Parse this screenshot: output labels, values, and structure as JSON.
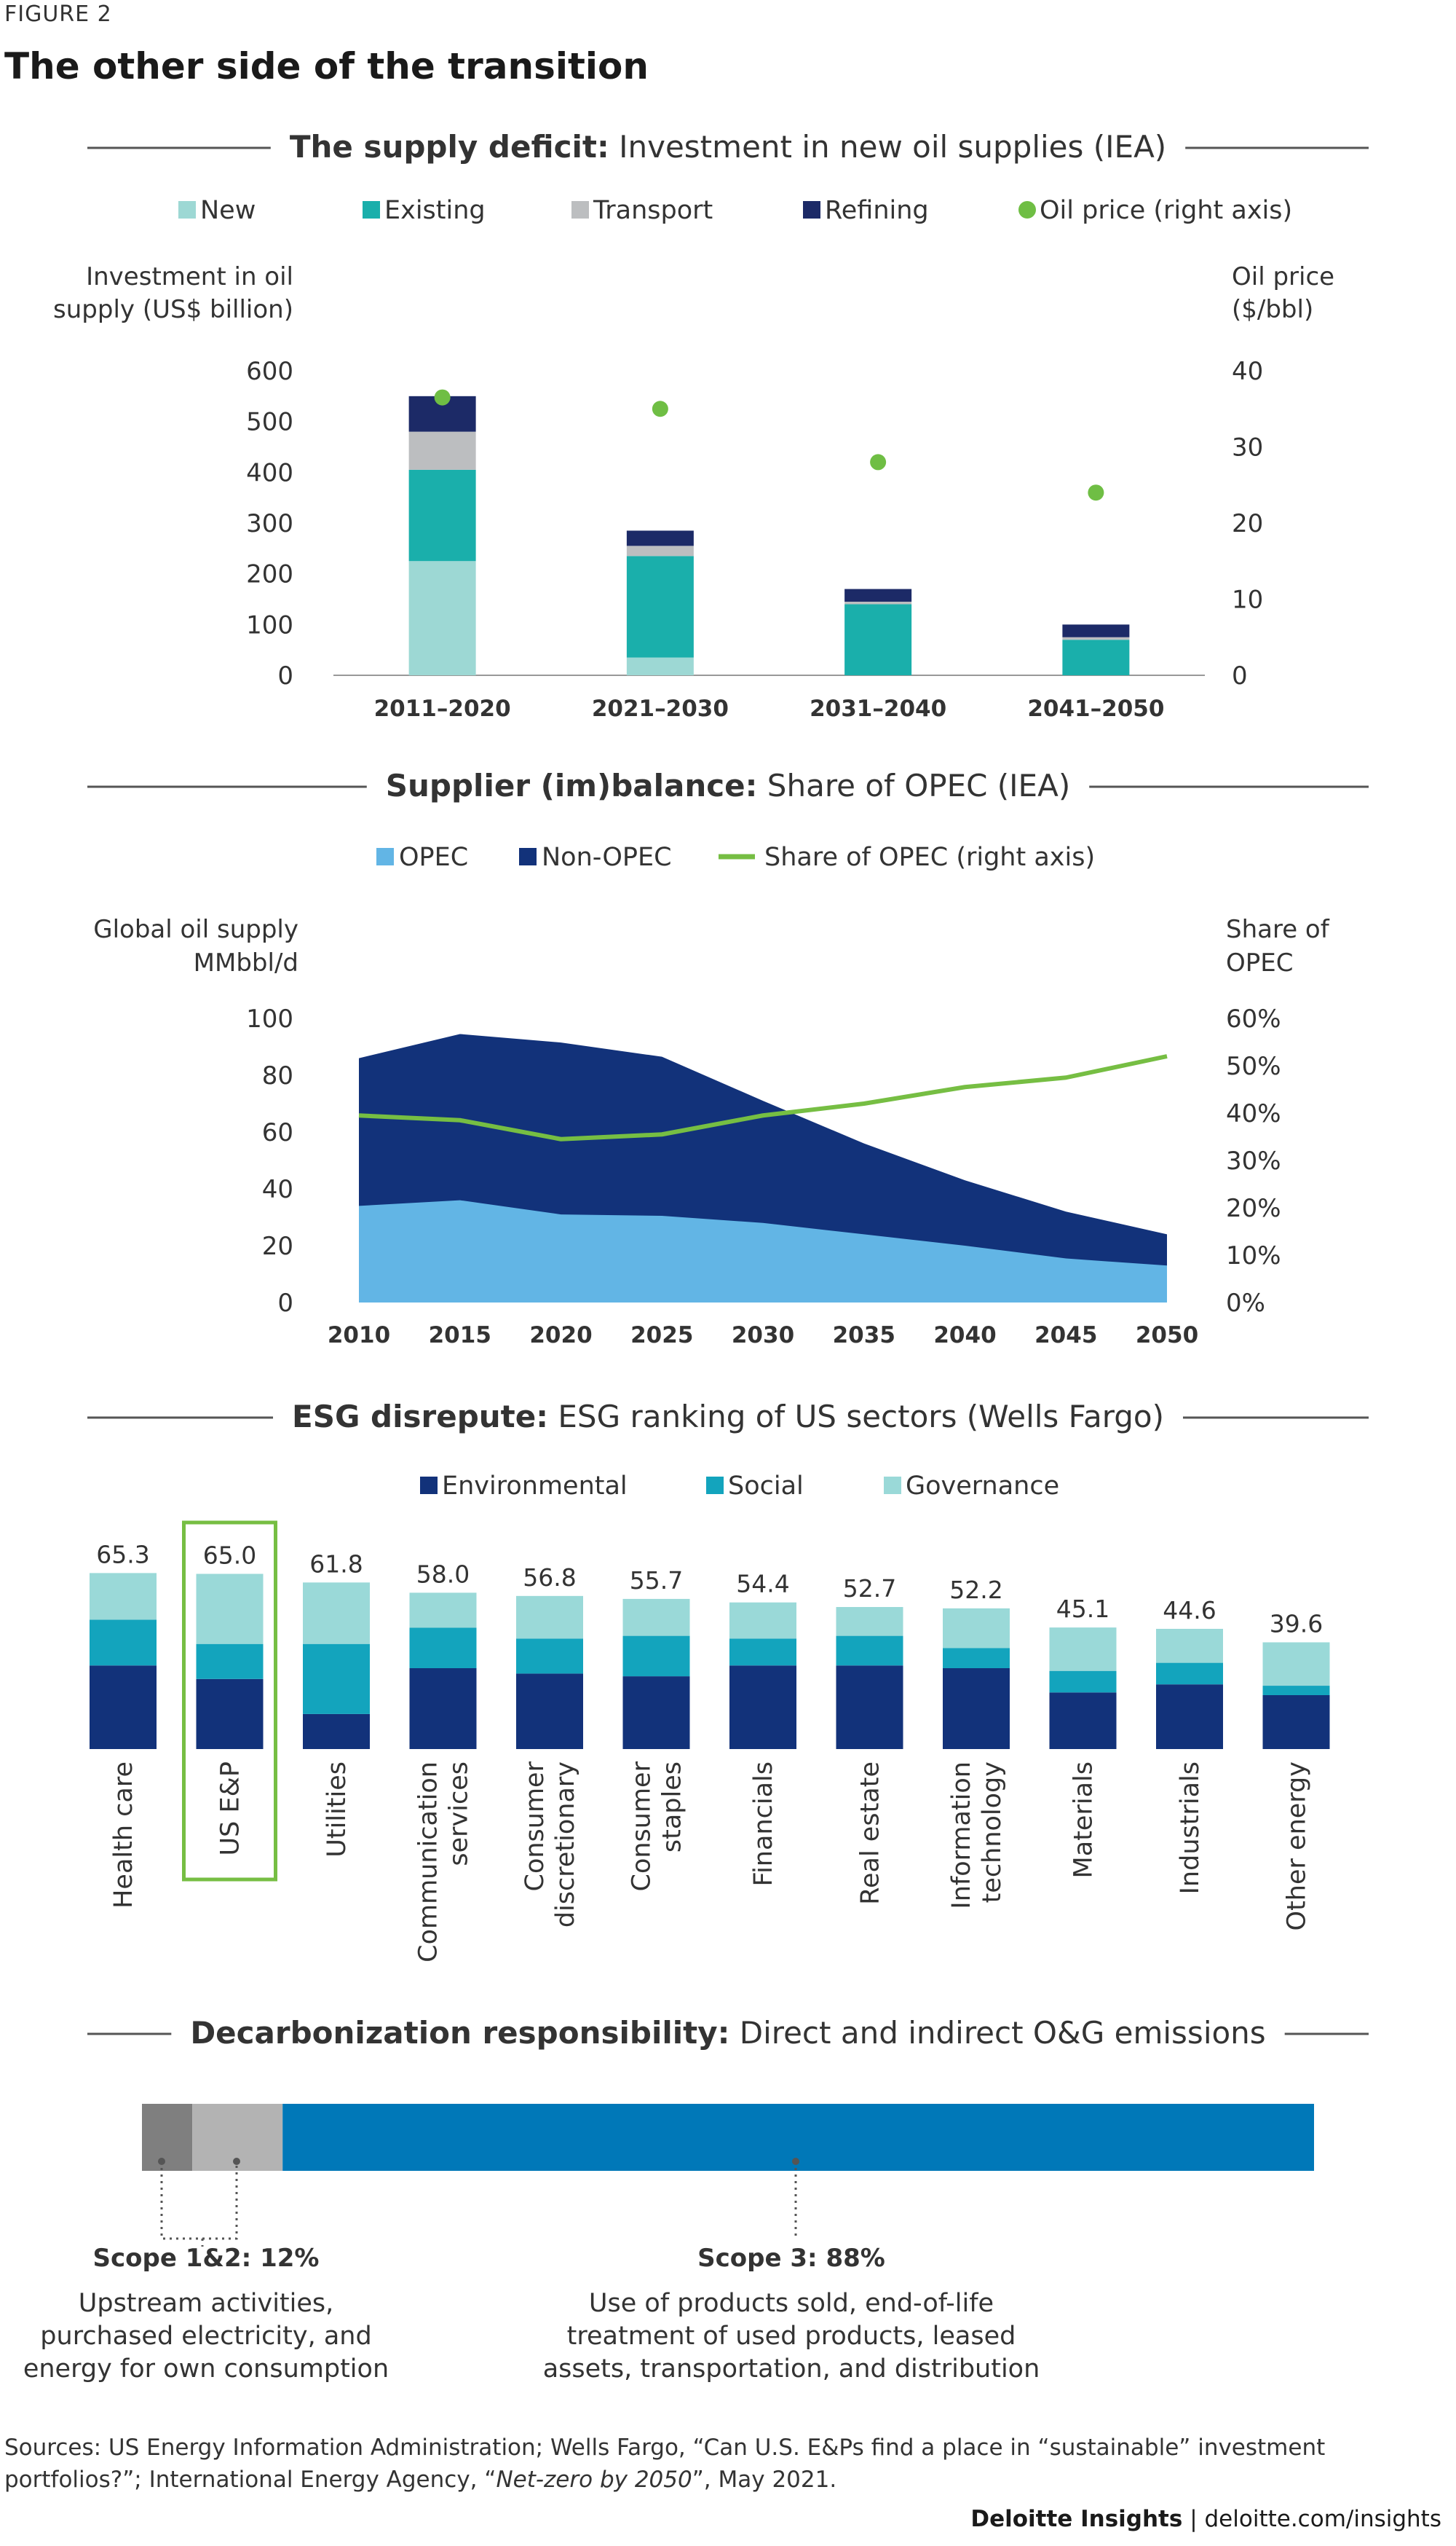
{
  "figure_label": "FIGURE 2",
  "title": "The other side of the transition",
  "colors": {
    "new": "#9dd8d4",
    "existing": "#1aafab",
    "transport": "#bcbec0",
    "refining": "#1c2a67",
    "oil_price": "#6fbe44",
    "opec": "#62b5e5",
    "non_opec": "#12327a",
    "share_line": "#76be43",
    "environmental": "#12327a",
    "social": "#13a4bd",
    "governance": "#9ad9d8",
    "highlight": "#76be43",
    "scope12_dark": "#7f7f7f",
    "scope12_light": "#b3b3b3",
    "scope3": "#0078b8"
  },
  "chart_data": [
    {
      "type": "bar",
      "stacked": true,
      "title_bold": "The supply deficit:",
      "title_rest": " Investment in new oil supplies (IEA)",
      "legend": [
        "New",
        "Existing",
        "Transport",
        "Refining",
        "Oil price (right axis)"
      ],
      "ylabel": [
        "Investment in oil",
        "supply (US$ billion)"
      ],
      "y2label": [
        "Oil price",
        "($/bbl)"
      ],
      "ylim": [
        0,
        600
      ],
      "yticks": [
        "600",
        "500",
        "400",
        "300",
        "200",
        "100",
        "0"
      ],
      "y2lim": [
        0,
        40
      ],
      "y2ticks": [
        "40",
        "30",
        "20",
        "10",
        "0"
      ],
      "categories": [
        "2011–2020",
        "2021–2030",
        "2031–2040",
        "2041–2050"
      ],
      "series": [
        {
          "name": "New",
          "values": [
            225,
            35,
            0,
            0
          ]
        },
        {
          "name": "Existing",
          "values": [
            180,
            200,
            140,
            70
          ]
        },
        {
          "name": "Transport",
          "values": [
            75,
            20,
            5,
            5
          ]
        },
        {
          "name": "Refining",
          "values": [
            70,
            30,
            25,
            25
          ]
        }
      ],
      "oil_price": [
        36.5,
        35,
        28,
        24
      ]
    },
    {
      "type": "area",
      "stacked": true,
      "title_bold": "Supplier (im)balance:",
      "title_rest": " Share of OPEC (IEA)",
      "legend": [
        "OPEC",
        "Non-OPEC",
        "Share of OPEC (right axis)"
      ],
      "ylabel": [
        "Global oil supply",
        "MMbbl/d"
      ],
      "y2label": [
        "Share of",
        "OPEC"
      ],
      "ylim": [
        0,
        100
      ],
      "yticks": [
        "100",
        "80",
        "60",
        "40",
        "20",
        "0"
      ],
      "y2lim": [
        0,
        60
      ],
      "y2ticks": [
        "60%",
        "50%",
        "40%",
        "30%",
        "20%",
        "10%",
        "0%"
      ],
      "x": [
        "2010",
        "2015",
        "2020",
        "2025",
        "2030",
        "2035",
        "2040",
        "2045",
        "2050"
      ],
      "opec": [
        34,
        36,
        31,
        30.5,
        28,
        24,
        20,
        15.5,
        13
      ],
      "total": [
        86,
        94.5,
        91.5,
        86.5,
        71,
        56,
        43,
        32,
        24
      ],
      "share_pct": [
        39.5,
        38.5,
        34.5,
        35.5,
        39.5,
        42,
        45.5,
        47.5,
        52
      ]
    },
    {
      "type": "bar",
      "stacked": true,
      "title_bold": "ESG disrepute:",
      "title_rest": " ESG ranking of US sectors (Wells Fargo)",
      "legend": [
        "Environmental",
        "Social",
        "Governance"
      ],
      "ylim": [
        0,
        70
      ],
      "categories": [
        [
          "Health care"
        ],
        [
          "US E&P"
        ],
        [
          "Utilities"
        ],
        [
          "Communication",
          "services"
        ],
        [
          "Consumer",
          "discretionary"
        ],
        [
          "Consumer",
          "staples"
        ],
        [
          "Financials"
        ],
        [
          "Real estate"
        ],
        [
          "Information",
          "technology"
        ],
        [
          "Materials"
        ],
        [
          "Industrials"
        ],
        [
          "Other energy"
        ]
      ],
      "totals": [
        "65.3",
        "65.0",
        "61.8",
        "58.0",
        "56.8",
        "55.7",
        "54.4",
        "52.7",
        "52.2",
        "45.1",
        "44.6",
        "39.6"
      ],
      "series": [
        {
          "name": "Environmental",
          "values": [
            31,
            26,
            13,
            30,
            28,
            27,
            31,
            31,
            30,
            21,
            24,
            20
          ]
        },
        {
          "name": "Social",
          "values": [
            17,
            13,
            26,
            15,
            13,
            15,
            10,
            11,
            7.5,
            8,
            8,
            3.5
          ]
        },
        {
          "name": "Governance",
          "values": [
            17.3,
            26,
            22.8,
            13,
            15.8,
            13.7,
            13.4,
            10.7,
            14.7,
            16.1,
            12.6,
            16.1
          ]
        }
      ],
      "highlight_index": 1
    },
    {
      "type": "bar",
      "stacked": true,
      "title_bold": "Decarbonization responsibility:",
      "title_rest": " Direct and indirect O&G emissions",
      "segments": [
        {
          "name": "Scope 1",
          "value": 4.3
        },
        {
          "name": "Scope 2",
          "value": 7.7
        },
        {
          "name": "Scope 3",
          "value": 88
        }
      ],
      "labels": [
        {
          "heading": "Scope 1&2: 12%",
          "desc": [
            "Upstream activities,",
            "purchased electricity, and",
            "energy for own consumption"
          ]
        },
        {
          "heading": "Scope 3: 88%",
          "desc": [
            "Use of products sold, end-of-life",
            "treatment of used products, leased",
            "assets, transportation, and distribution"
          ]
        }
      ]
    }
  ],
  "sources": {
    "prefix": "Sources: US Energy Information Administration; Wells Fargo, “Can U.S. E&Ps find a place in “sustainable” investment portfolios?”; International Energy Agency, “",
    "italic": "Net-zero by 2050",
    "suffix": "”, May 2021."
  },
  "footer": {
    "brand": "Deloitte Insights",
    "sep": " | ",
    "url": "deloitte.com/insights"
  }
}
